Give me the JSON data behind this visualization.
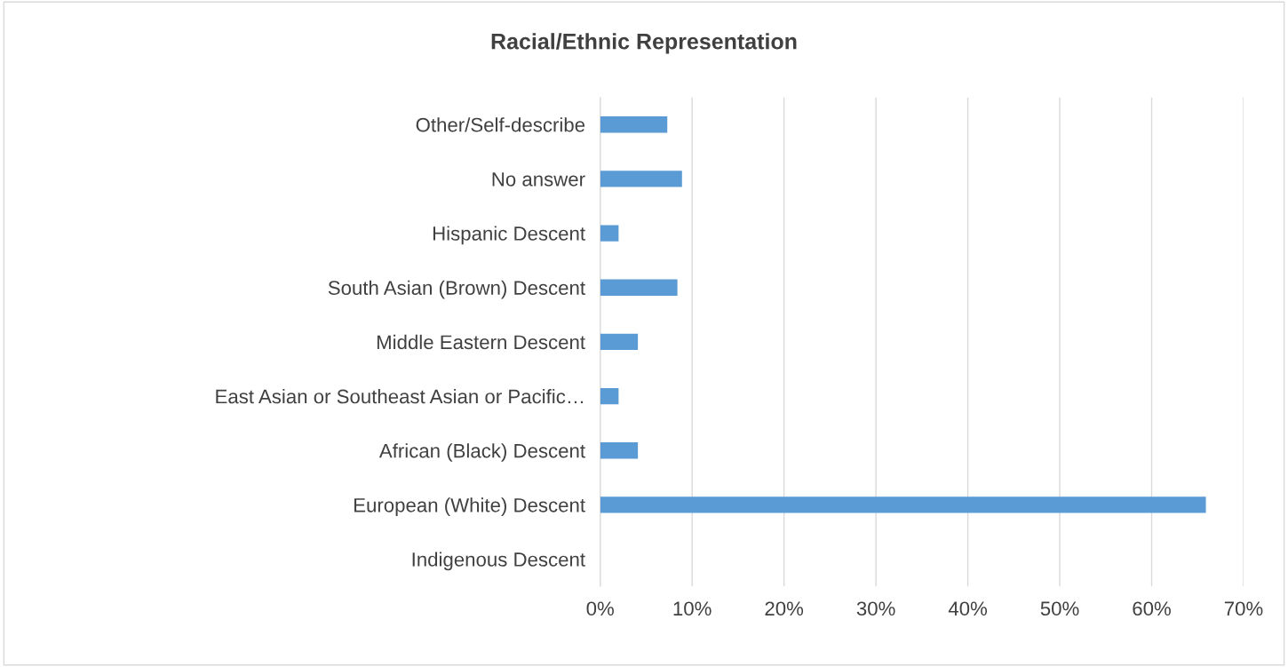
{
  "chart_data": {
    "type": "bar",
    "orientation": "horizontal",
    "title": "Racial/Ethnic Representation",
    "categories": [
      "Other/Self-describe",
      "No answer",
      "Hispanic Descent",
      "South Asian (Brown) Descent",
      "Middle Eastern Descent",
      "East Asian or Southeast Asian or Pacific…",
      "African (Black) Descent",
      "European (White) Descent",
      "Indigenous Descent"
    ],
    "values": [
      7.3,
      8.9,
      2.0,
      8.4,
      4.1,
      2.0,
      4.1,
      65.9,
      0
    ],
    "color": "#5b9bd5",
    "xlim": [
      0,
      70
    ],
    "xticks": [
      {
        "value": 0,
        "label": "0%"
      },
      {
        "value": 10,
        "label": "10%"
      },
      {
        "value": 20,
        "label": "20%"
      },
      {
        "value": 30,
        "label": "30%"
      },
      {
        "value": 40,
        "label": "40%"
      },
      {
        "value": 50,
        "label": "50%"
      },
      {
        "value": 60,
        "label": "60%"
      },
      {
        "value": 70,
        "label": "70%"
      }
    ],
    "grid": "x",
    "legend": false
  }
}
